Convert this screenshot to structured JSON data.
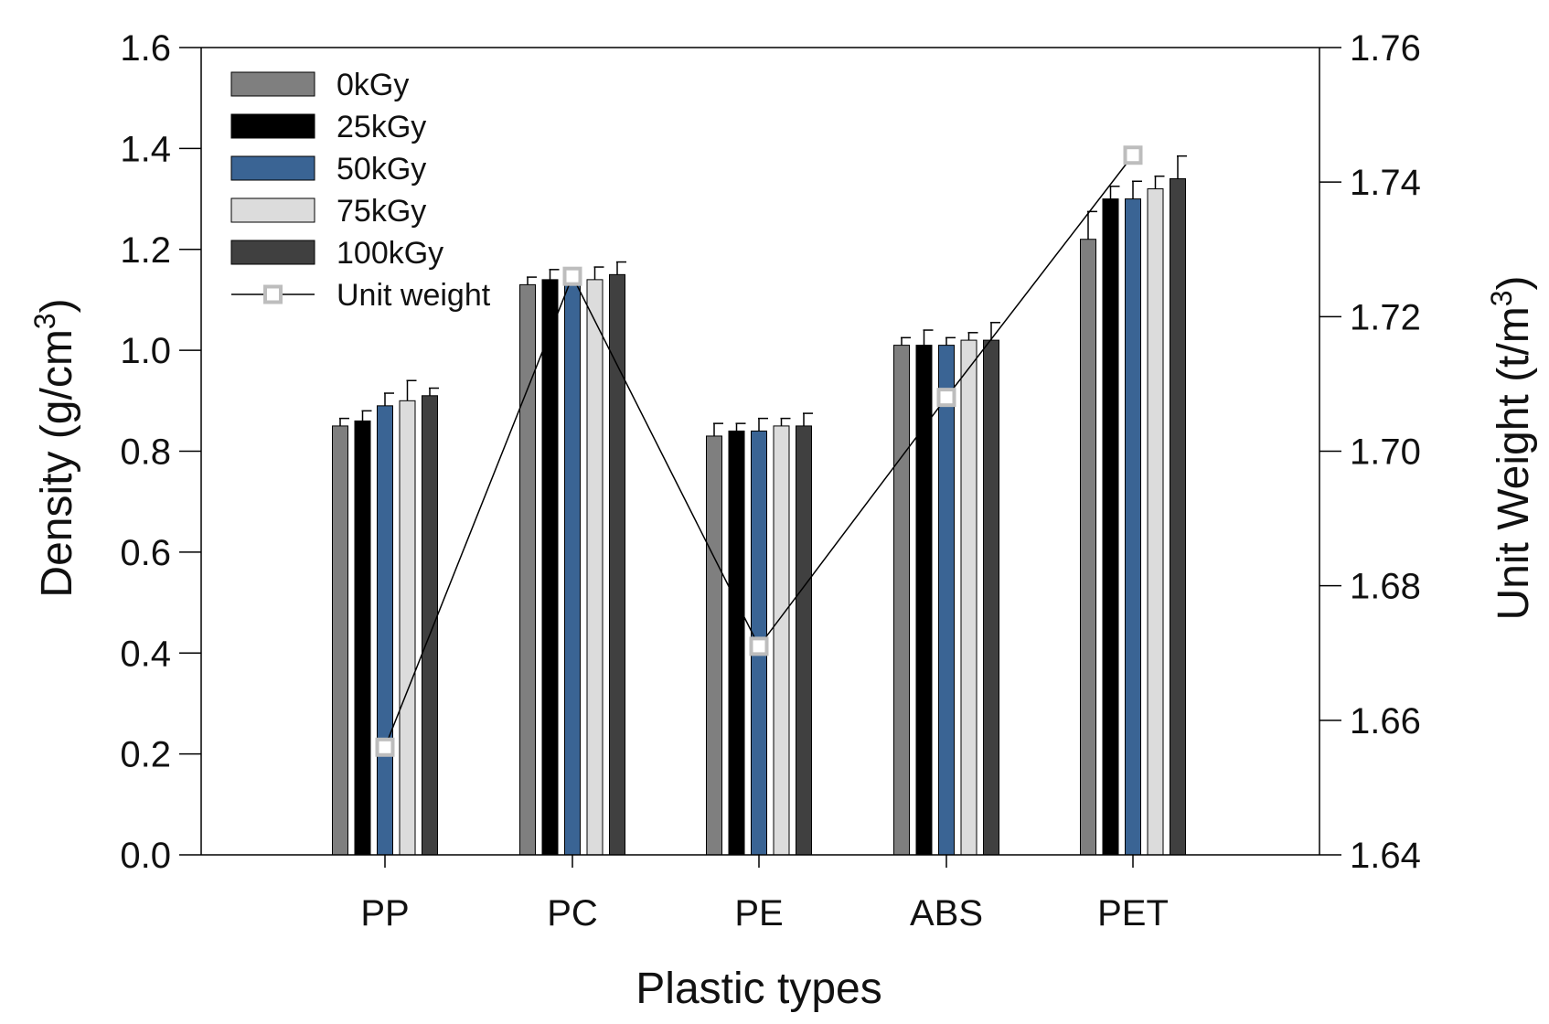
{
  "chart_data": {
    "type": "bar",
    "title": "",
    "xlabel": "Plastic types",
    "ylabel_left": {
      "main": "Density (g/cm",
      "sup": "3",
      "close": ")"
    },
    "ylabel_right": {
      "main": "Unit Weight (t/m",
      "sup": "3",
      "close": ")"
    },
    "categories": [
      "PP",
      "PC",
      "PE",
      "ABS",
      "PET"
    ],
    "ylim": [
      0,
      1.6
    ],
    "yticks": [
      0.0,
      0.2,
      0.4,
      0.6,
      0.8,
      1.0,
      1.2,
      1.4,
      1.6
    ],
    "ytick_labels": [
      "0.0",
      "0.2",
      "0.4",
      "0.6",
      "0.8",
      "1.0",
      "1.2",
      "1.4",
      "1.6"
    ],
    "y2lim": [
      1.64,
      1.76
    ],
    "y2ticks": [
      1.64,
      1.66,
      1.68,
      1.7,
      1.72,
      1.74,
      1.76
    ],
    "y2tick_labels": [
      "1.64",
      "1.66",
      "1.68",
      "1.70",
      "1.72",
      "1.74",
      "1.76"
    ],
    "series": [
      {
        "name": "0kGy",
        "color": "#7f7f7f",
        "values": [
          0.85,
          1.13,
          0.83,
          1.01,
          1.22
        ],
        "errors": [
          0.015,
          0.015,
          0.025,
          0.015,
          0.055
        ]
      },
      {
        "name": "25kGy",
        "color": "#000000",
        "values": [
          0.86,
          1.14,
          0.84,
          1.01,
          1.3
        ],
        "errors": [
          0.02,
          0.02,
          0.015,
          0.03,
          0.025
        ]
      },
      {
        "name": "50kGy",
        "color": "#3a6494",
        "values": [
          0.89,
          1.14,
          0.84,
          1.01,
          1.3
        ],
        "errors": [
          0.025,
          0.02,
          0.025,
          0.015,
          0.035
        ]
      },
      {
        "name": "75kGy",
        "color": "#dcdcdc",
        "values": [
          0.9,
          1.14,
          0.85,
          1.02,
          1.32
        ],
        "errors": [
          0.04,
          0.025,
          0.015,
          0.015,
          0.025
        ]
      },
      {
        "name": "100kGy",
        "color": "#404040",
        "values": [
          0.91,
          1.15,
          0.85,
          1.02,
          1.34
        ],
        "errors": [
          0.015,
          0.025,
          0.025,
          0.035,
          0.045
        ]
      }
    ],
    "line_series": {
      "name": "Unit weight",
      "axis": "right",
      "color": "#000000",
      "marker_color": "#bdbdbd",
      "values": [
        1.656,
        1.726,
        1.671,
        1.708,
        1.744
      ]
    },
    "legend_position": "top-left"
  }
}
